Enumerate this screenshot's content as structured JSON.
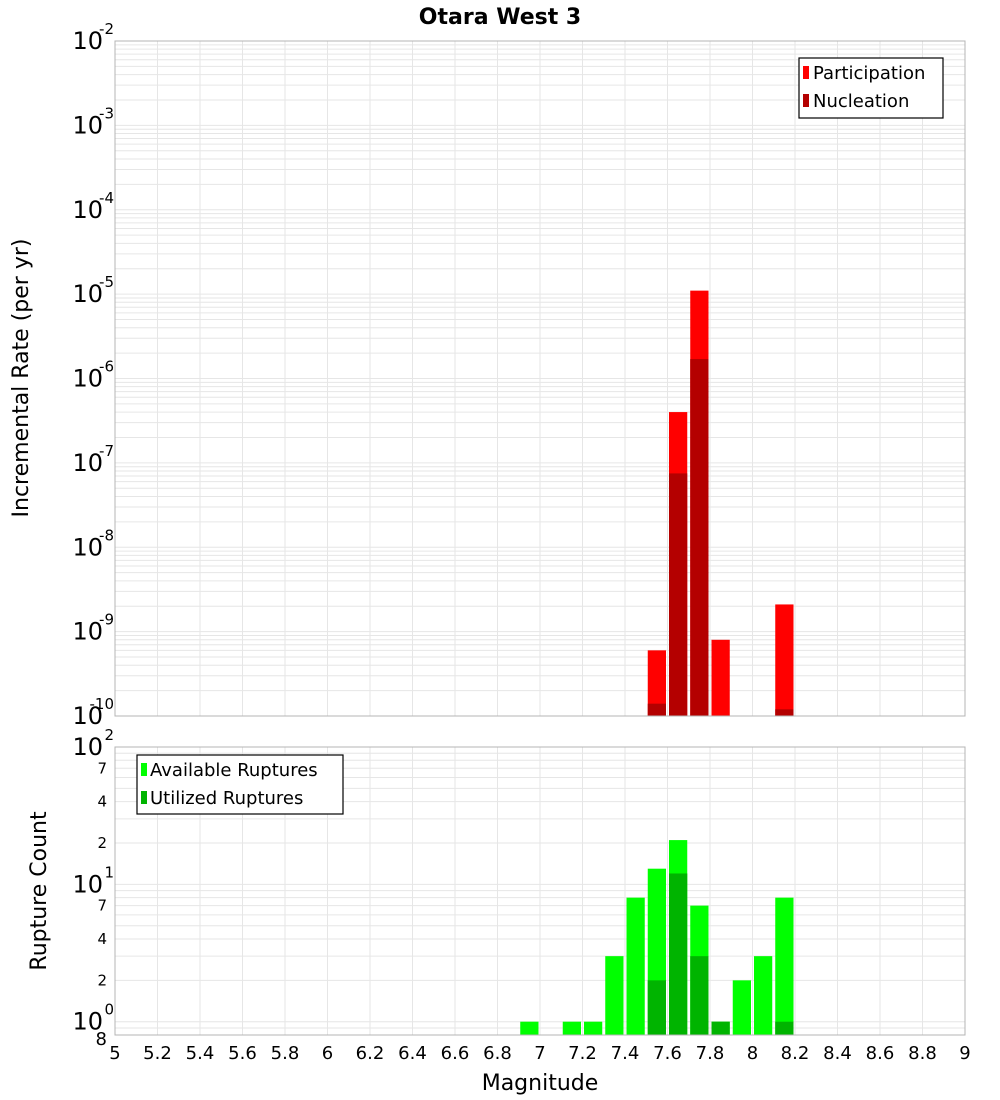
{
  "chart_data": [
    {
      "id": "rates",
      "type": "bar",
      "title": "Otara West 3",
      "xlabel": "Magnitude",
      "ylabel": "Incremental Rate (per yr)",
      "yscale": "log",
      "xlim": [
        5,
        9
      ],
      "ylim": [
        1e-10,
        0.01
      ],
      "bin_width": 0.1,
      "x_ticks": [
        "5",
        "5.2",
        "5.4",
        "5.6",
        "5.8",
        "6",
        "6.2",
        "6.4",
        "6.6",
        "6.8",
        "7",
        "7.2",
        "7.4",
        "7.6",
        "7.8",
        "8",
        "8.2",
        "8.4",
        "8.6",
        "8.8",
        "9"
      ],
      "y_ticks": [
        {
          "base": "10",
          "exp": "-10",
          "value": 1e-10
        },
        {
          "base": "10",
          "exp": "-9",
          "value": 1e-09
        },
        {
          "base": "10",
          "exp": "-8",
          "value": 1e-08
        },
        {
          "base": "10",
          "exp": "-7",
          "value": 1e-07
        },
        {
          "base": "10",
          "exp": "-6",
          "value": 1e-06
        },
        {
          "base": "10",
          "exp": "-5",
          "value": 1e-05
        },
        {
          "base": "10",
          "exp": "-4",
          "value": 0.0001
        },
        {
          "base": "10",
          "exp": "-3",
          "value": 0.001
        },
        {
          "base": "10",
          "exp": "-2",
          "value": 0.01
        }
      ],
      "legend": {
        "position": "top-right"
      },
      "series": [
        {
          "name": "Participation",
          "color": "#ff0000",
          "x": [
            7.55,
            7.65,
            7.75,
            7.85,
            8.15
          ],
          "values": [
            6e-10,
            4e-07,
            1.1e-05,
            8e-10,
            2.1e-09
          ]
        },
        {
          "name": "Nucleation",
          "color": "#b40000",
          "x": [
            7.55,
            7.65,
            7.75,
            7.85,
            8.15
          ],
          "values": [
            1.4e-10,
            7.5e-08,
            1.7e-06,
            1e-10,
            1.2e-10
          ]
        }
      ]
    },
    {
      "id": "counts",
      "type": "bar",
      "xlabel": "Magnitude",
      "ylabel": "Rupture Count",
      "yscale": "log",
      "xlim": [
        5,
        9
      ],
      "ylim": [
        0.8,
        100
      ],
      "bin_width": 0.1,
      "y_ticks": [
        {
          "base": "10",
          "exp": "0",
          "value": 1
        },
        {
          "base": "10",
          "exp": "1",
          "value": 10
        },
        {
          "base": "10",
          "exp": "2",
          "value": 100
        }
      ],
      "y_minor_ticks": [
        {
          "label": "8",
          "value": 0.8
        },
        {
          "label": "2",
          "value": 2
        },
        {
          "label": "4",
          "value": 4
        },
        {
          "label": "7",
          "value": 7
        },
        {
          "label": "2",
          "value": 20
        },
        {
          "label": "4",
          "value": 40
        },
        {
          "label": "7",
          "value": 70
        }
      ],
      "legend": {
        "position": "top-left"
      },
      "series": [
        {
          "name": "Available Ruptures",
          "color": "#00ff00",
          "x": [
            6.95,
            7.15,
            7.25,
            7.35,
            7.45,
            7.55,
            7.65,
            7.75,
            7.85,
            7.95,
            8.05,
            8.15
          ],
          "values": [
            1,
            1,
            1,
            3,
            8,
            13,
            21,
            7,
            1,
            2,
            3,
            8
          ]
        },
        {
          "name": "Utilized Ruptures",
          "color": "#00b400",
          "x": [
            7.55,
            7.65,
            7.75,
            7.85,
            8.15
          ],
          "values": [
            2,
            12,
            3,
            1,
            1
          ]
        }
      ]
    }
  ]
}
